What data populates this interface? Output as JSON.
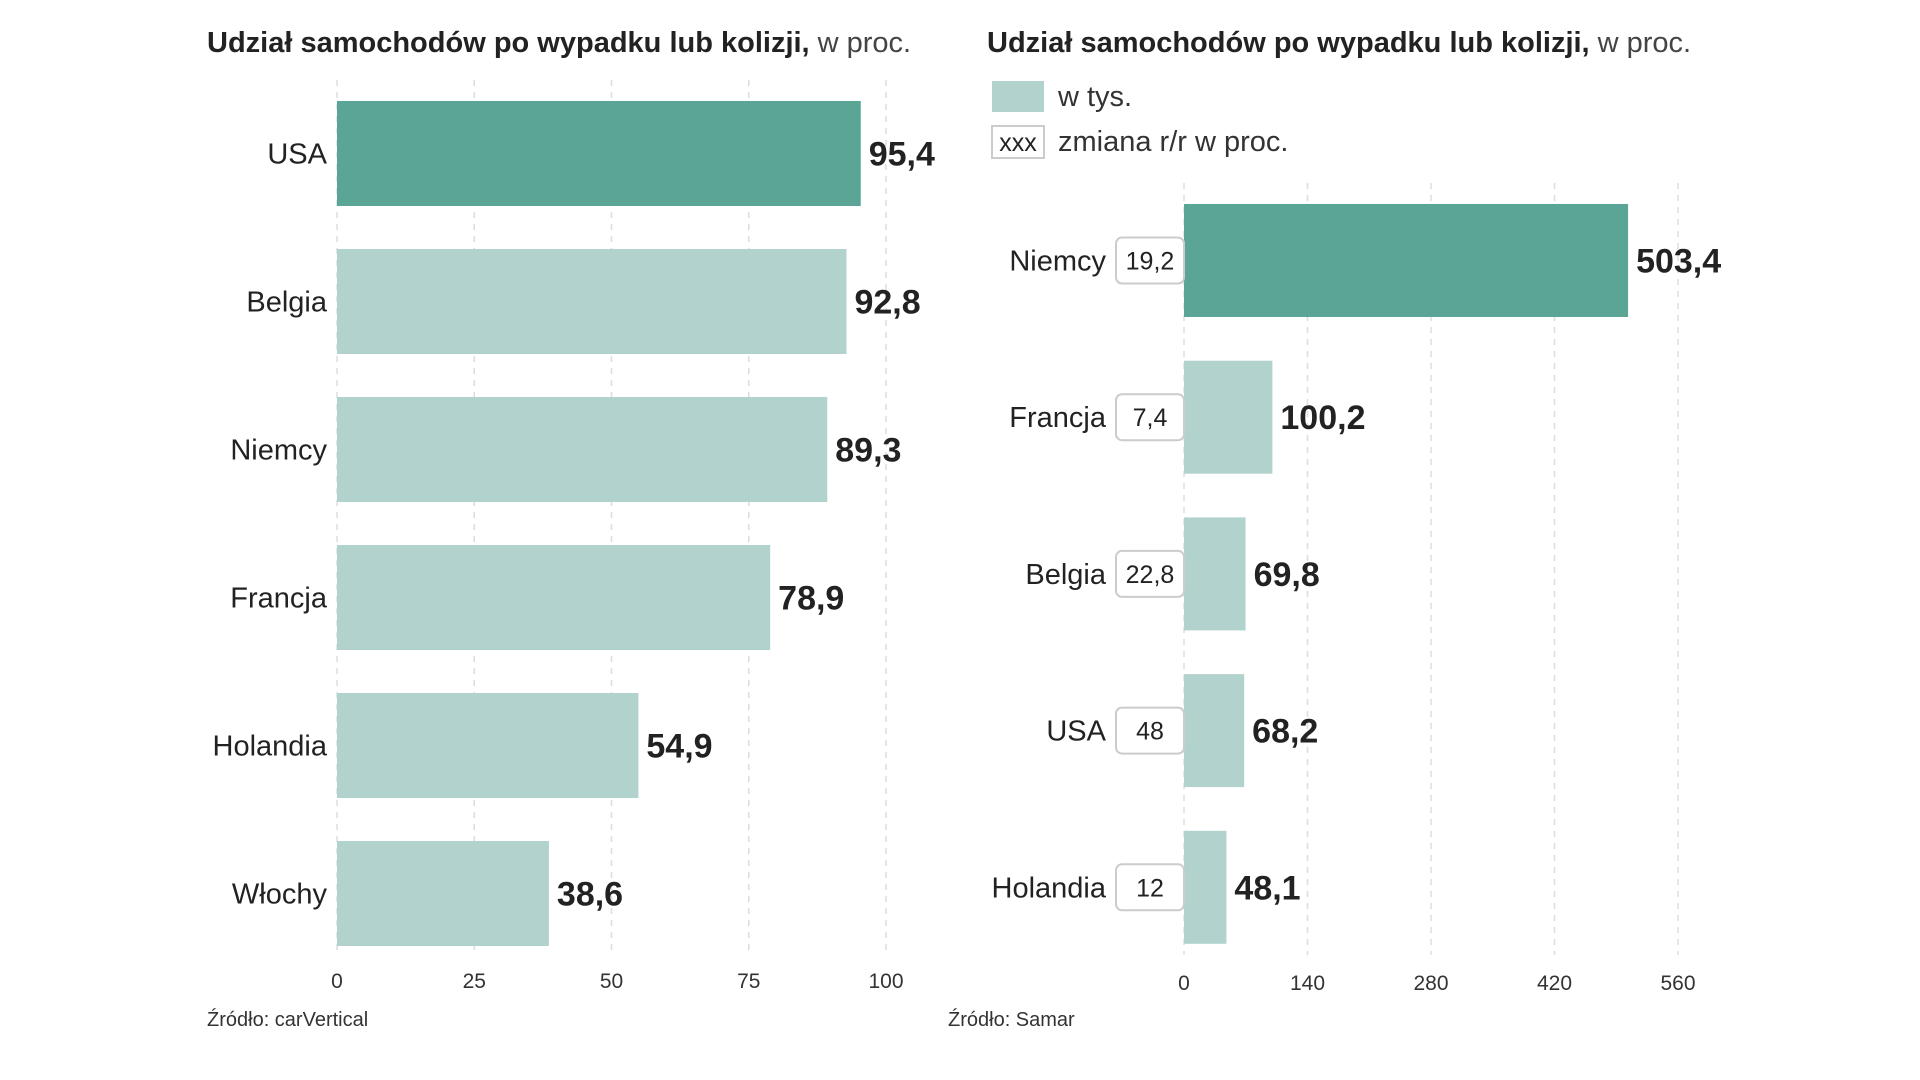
{
  "chart_data": [
    {
      "type": "bar",
      "orientation": "horizontal",
      "title": "Udział samochodów po wypadku lub kolizji,",
      "subtitle": "w proc.",
      "categories": [
        "USA",
        "Belgia",
        "Niemcy",
        "Francja",
        "Holandia",
        "Włochy"
      ],
      "values": [
        95.4,
        92.8,
        89.3,
        78.9,
        54.9,
        38.6
      ],
      "value_labels": [
        "95,4",
        "92,8",
        "89,3",
        "78,9",
        "54,9",
        "38,6"
      ],
      "highlight_index": 0,
      "xlim": [
        0,
        100
      ],
      "xticks": [
        "0",
        "25",
        "50",
        "75",
        "100"
      ],
      "xtick_values": [
        0,
        25,
        50,
        75,
        100
      ],
      "grid": true,
      "source": "Źródło: carVertical"
    },
    {
      "type": "bar",
      "orientation": "horizontal",
      "title": "Udział samochodów po wypadku lub kolizji,",
      "subtitle": "w proc.",
      "legend": [
        {
          "label": "w tys.",
          "swatch": "bar"
        },
        {
          "label": "zmiana r/r w proc.",
          "swatch": "box",
          "box_text": "XXX"
        }
      ],
      "categories": [
        "Niemcy",
        "Francja",
        "Belgia",
        "USA",
        "Holandia"
      ],
      "values": [
        503.4,
        100.2,
        69.8,
        68.2,
        48.1
      ],
      "value_labels": [
        "503,4",
        "100,2",
        "69,8",
        "68,2",
        "48,1"
      ],
      "changes": [
        "19,2",
        "7,4",
        "22,8",
        "48",
        "12"
      ],
      "highlight_index": 0,
      "xlim": [
        0,
        560
      ],
      "xticks": [
        "0",
        "140",
        "280",
        "420",
        "560"
      ],
      "xtick_values": [
        0,
        140,
        280,
        420,
        560
      ],
      "grid": true,
      "source": "Źródło: Samar"
    }
  ],
  "colors": {
    "highlight": "#5ba596",
    "bar": "#b2d3cd",
    "text": "#222222"
  }
}
